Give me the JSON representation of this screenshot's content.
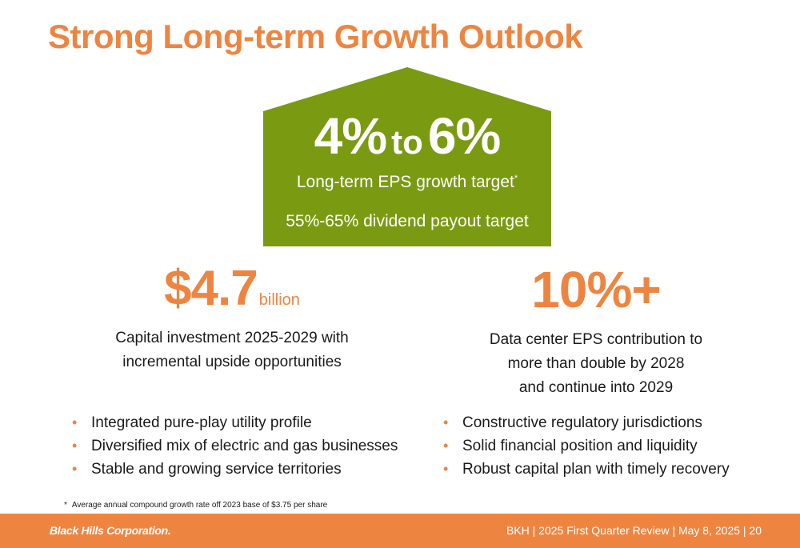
{
  "title": "Strong Long-term Growth Outlook",
  "house": {
    "range_low": "4%",
    "range_connector": "to",
    "range_high": "6%",
    "eps_label": "Long-term EPS growth target",
    "eps_footnote_mark": "*",
    "dividend_label": "55%-65% dividend payout target",
    "color": "#7a9a12"
  },
  "capex": {
    "figure": "$4.7",
    "unit": "billion",
    "desc_line1": "Capital investment 2025-2029 with",
    "desc_line2": "incremental upside opportunities"
  },
  "datacenter": {
    "figure": "10%+",
    "desc_line1": "Data center EPS contribution to",
    "desc_line2": "more than double by 2028",
    "desc_line3": "and continue into 2029"
  },
  "bullets_left": [
    "Integrated pure-play utility profile",
    "Diversified mix of electric and gas businesses",
    "Stable and growing service territories"
  ],
  "bullets_right": [
    "Constructive regulatory jurisdictions",
    "Solid financial position and liquidity",
    "Robust capital plan with timely recovery"
  ],
  "bullet_symbol": "•",
  "footnote": {
    "mark": "*",
    "text": "Average annual compound growth rate off 2023 base of $3.75 per share"
  },
  "footer": {
    "logo_text": "Black Hills Corporation.",
    "info": "BKH  |  2025 First Quarter Review  |  May 8, 2025  |  20"
  },
  "colors": {
    "accent": "#ed8541",
    "house_green": "#7a9a12"
  }
}
